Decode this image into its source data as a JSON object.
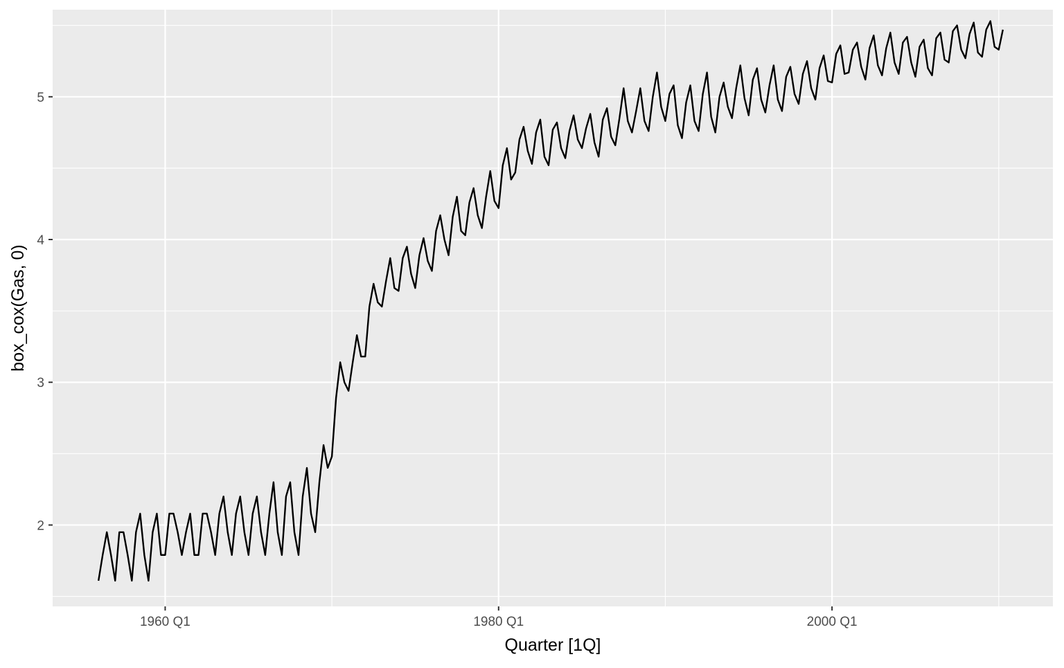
{
  "chart_data": {
    "type": "line",
    "title": "",
    "xlabel": "Quarter [1Q]",
    "ylabel": "box_cox(Gas, 0)",
    "x_start": "1956 Q1",
    "x_end": "2010 Q2",
    "xlim": [
      1953.25,
      2013.25
    ],
    "ylim": [
      1.43,
      5.61
    ],
    "x_ticks": [
      {
        "value": 1960,
        "label": "1960 Q1"
      },
      {
        "value": 1980,
        "label": "1980 Q1"
      },
      {
        "value": 2000,
        "label": "2000 Q1"
      }
    ],
    "x_minor_ticks": [
      1970,
      1990,
      2010
    ],
    "y_ticks": [
      {
        "value": 2,
        "label": "2"
      },
      {
        "value": 3,
        "label": "3"
      },
      {
        "value": 4,
        "label": "4"
      },
      {
        "value": 5,
        "label": "5"
      }
    ],
    "y_minor_ticks": [
      1.5,
      2.5,
      3.5,
      4.5,
      5.5
    ],
    "grid": true,
    "legend": "none",
    "series": [
      {
        "values": [
          1.61,
          1.79,
          1.95,
          1.79,
          1.61,
          1.95,
          1.95,
          1.79,
          1.61,
          1.95,
          2.08,
          1.79,
          1.61,
          1.95,
          2.08,
          1.79,
          1.79,
          2.08,
          2.08,
          1.95,
          1.79,
          1.95,
          2.08,
          1.79,
          1.79,
          2.08,
          2.08,
          1.95,
          1.79,
          2.08,
          2.2,
          1.95,
          1.79,
          2.08,
          2.2,
          1.95,
          1.79,
          2.08,
          2.2,
          1.95,
          1.79,
          2.08,
          2.3,
          1.95,
          1.79,
          2.2,
          2.3,
          1.95,
          1.79,
          2.2,
          2.4,
          2.08,
          1.95,
          2.3,
          2.56,
          2.4,
          2.48,
          2.89,
          3.14,
          3.0,
          2.94,
          3.14,
          3.33,
          3.18,
          3.18,
          3.53,
          3.69,
          3.56,
          3.53,
          3.71,
          3.87,
          3.66,
          3.64,
          3.87,
          3.95,
          3.76,
          3.66,
          3.89,
          4.01,
          3.85,
          3.78,
          4.06,
          4.17,
          4.0,
          3.89,
          4.16,
          4.3,
          4.06,
          4.03,
          4.26,
          4.36,
          4.17,
          4.08,
          4.3,
          4.48,
          4.27,
          4.22,
          4.52,
          4.64,
          4.42,
          4.47,
          4.7,
          4.79,
          4.62,
          4.53,
          4.75,
          4.84,
          4.58,
          4.52,
          4.77,
          4.82,
          4.64,
          4.57,
          4.76,
          4.87,
          4.7,
          4.64,
          4.78,
          4.88,
          4.68,
          4.58,
          4.84,
          4.92,
          4.72,
          4.66,
          4.85,
          5.06,
          4.83,
          4.75,
          4.9,
          5.06,
          4.83,
          4.76,
          5.0,
          5.17,
          4.93,
          4.83,
          5.02,
          5.08,
          4.8,
          4.71,
          4.96,
          5.08,
          4.83,
          4.76,
          5.02,
          5.17,
          4.86,
          4.75,
          5.0,
          5.1,
          4.93,
          4.85,
          5.06,
          5.22,
          4.99,
          4.87,
          5.12,
          5.2,
          4.98,
          4.89,
          5.08,
          5.22,
          4.98,
          4.9,
          5.14,
          5.21,
          5.02,
          4.95,
          5.16,
          5.25,
          5.06,
          4.98,
          5.2,
          5.29,
          5.11,
          5.1,
          5.3,
          5.36,
          5.16,
          5.17,
          5.33,
          5.38,
          5.21,
          5.12,
          5.34,
          5.43,
          5.22,
          5.15,
          5.34,
          5.45,
          5.24,
          5.16,
          5.38,
          5.42,
          5.24,
          5.14,
          5.35,
          5.4,
          5.2,
          5.15,
          5.41,
          5.45,
          5.26,
          5.24,
          5.46,
          5.5,
          5.33,
          5.27,
          5.44,
          5.52,
          5.31,
          5.28,
          5.47,
          5.53,
          5.35,
          5.33,
          5.47
        ]
      }
    ]
  }
}
